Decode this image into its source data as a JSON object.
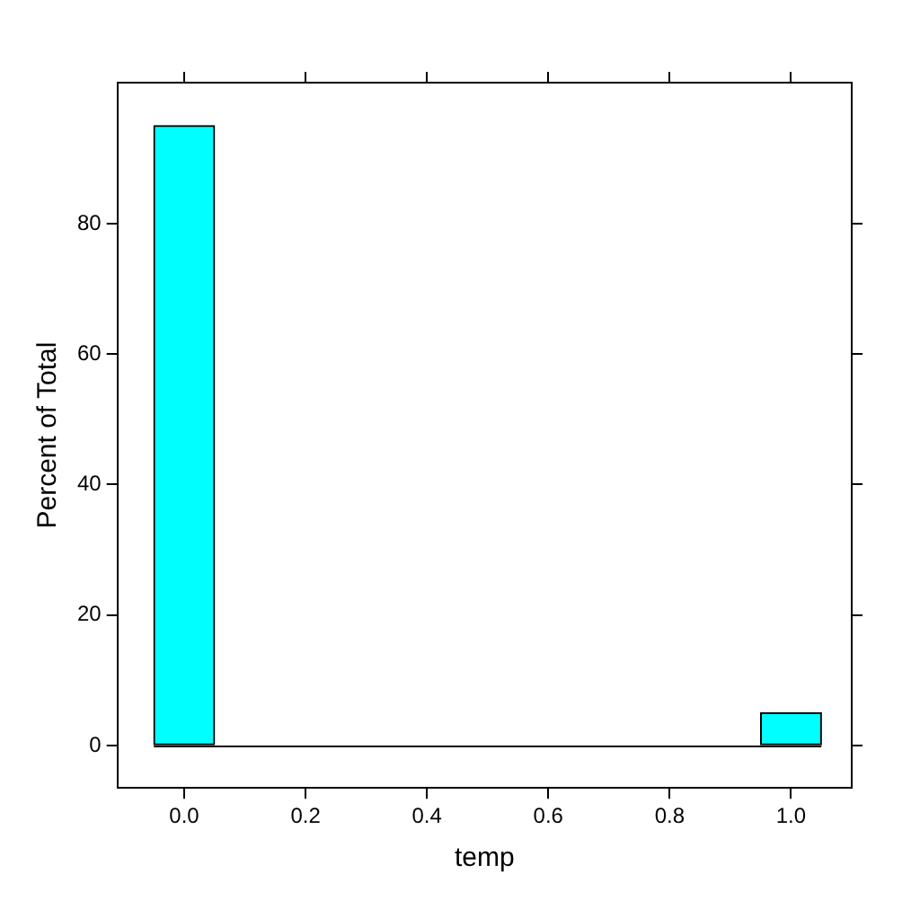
{
  "chart_data": {
    "type": "histogram",
    "xlabel": "temp",
    "ylabel": "Percent of Total",
    "bins": [
      -0.05,
      0.05,
      0.15,
      0.25,
      0.35,
      0.45,
      0.55,
      0.65,
      0.75,
      0.85,
      0.95,
      1.05
    ],
    "values": [
      95,
      0,
      0,
      0,
      0,
      0,
      0,
      0,
      0,
      0,
      5
    ],
    "color": "#00ffff",
    "xlim": [
      -0.11,
      1.1
    ],
    "xticks": [
      {
        "value": 0,
        "label": "0.0"
      },
      {
        "value": 0.2,
        "label": "0.2"
      },
      {
        "value": 0.4,
        "label": "0.4"
      },
      {
        "value": 0.6,
        "label": "0.6"
      },
      {
        "value": 0.8,
        "label": "0.8"
      },
      {
        "value": 1,
        "label": "1.0"
      }
    ],
    "ylim": [
      -6.5,
      101.6
    ],
    "yticks": [
      0,
      20,
      40,
      60,
      80
    ]
  }
}
